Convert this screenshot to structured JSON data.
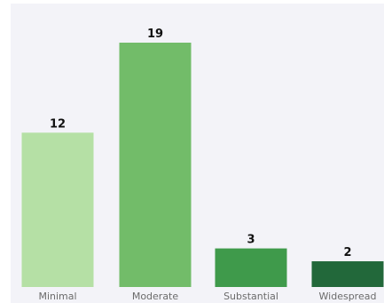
{
  "chart_data": {
    "type": "bar",
    "title": "",
    "xlabel": "",
    "ylabel": "",
    "categories": [
      "Minimal",
      "Moderate",
      "Substantial",
      "Widespread"
    ],
    "values": [
      12,
      19,
      3,
      2
    ],
    "ylim": [
      0,
      19
    ],
    "grid": false,
    "legend": "none",
    "colors": [
      "#b5e0a5",
      "#72bc69",
      "#3f9a4b",
      "#22683a"
    ]
  }
}
